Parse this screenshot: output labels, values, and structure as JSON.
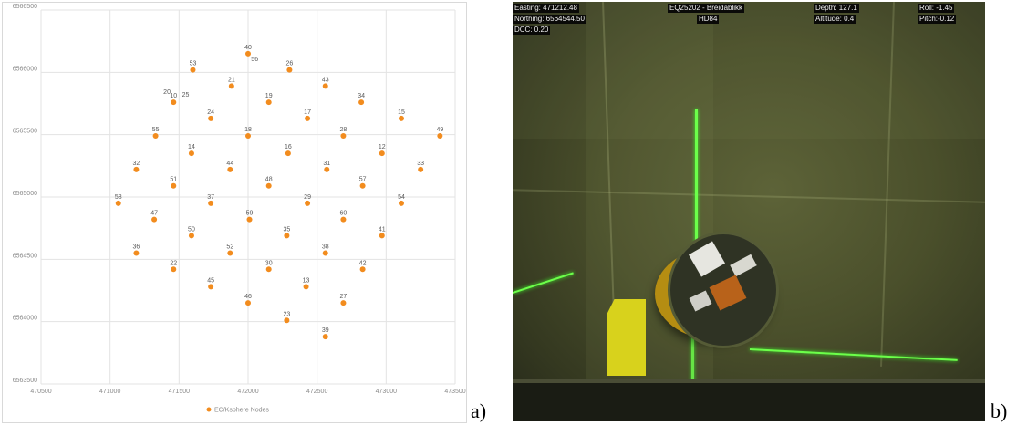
{
  "chart": {
    "panel_label": "a)",
    "legend_label": "EC/Ksphere Nodes"
  },
  "chart_data": {
    "type": "scatter",
    "xlim": [
      470500,
      473500
    ],
    "ylim": [
      6563500,
      6566500
    ],
    "x_ticks": [
      "470500",
      "471000",
      "471500",
      "472000",
      "472500",
      "473000",
      "473500"
    ],
    "y_ticks": [
      "6566500",
      "6566000",
      "6565500",
      "6565000",
      "6564500",
      "6564000",
      "6563500"
    ],
    "grid": true,
    "legend_placement": "bottom",
    "series": [
      {
        "name": "EC/Ksphere Nodes",
        "color": "#f28c1e",
        "points": [
          {
            "label": "40",
            "x": 472000,
            "y": 6566150
          },
          {
            "label": "53",
            "x": 471600,
            "y": 6566020
          },
          {
            "label": "26",
            "x": 472300,
            "y": 6566020
          },
          {
            "label": "21",
            "x": 471880,
            "y": 6565890
          },
          {
            "label": "43",
            "x": 472560,
            "y": 6565890
          },
          {
            "label": "10",
            "x": 471460,
            "y": 6565760
          },
          {
            "label": "19",
            "x": 472150,
            "y": 6565760
          },
          {
            "label": "34",
            "x": 472820,
            "y": 6565760
          },
          {
            "label": "24",
            "x": 471730,
            "y": 6565630
          },
          {
            "label": "17",
            "x": 472430,
            "y": 6565630
          },
          {
            "label": "15",
            "x": 473110,
            "y": 6565630
          },
          {
            "label": "55",
            "x": 471330,
            "y": 6565490
          },
          {
            "label": "18",
            "x": 472000,
            "y": 6565490
          },
          {
            "label": "28",
            "x": 472690,
            "y": 6565490
          },
          {
            "label": "49",
            "x": 473390,
            "y": 6565490
          },
          {
            "label": "14",
            "x": 471590,
            "y": 6565350
          },
          {
            "label": "16",
            "x": 472290,
            "y": 6565350
          },
          {
            "label": "12",
            "x": 472970,
            "y": 6565350
          },
          {
            "label": "32",
            "x": 471190,
            "y": 6565220
          },
          {
            "label": "44",
            "x": 471870,
            "y": 6565220
          },
          {
            "label": "31",
            "x": 472570,
            "y": 6565220
          },
          {
            "label": "33",
            "x": 473250,
            "y": 6565220
          },
          {
            "label": "51",
            "x": 471460,
            "y": 6565090
          },
          {
            "label": "48",
            "x": 472150,
            "y": 6565090
          },
          {
            "label": "57",
            "x": 472830,
            "y": 6565090
          },
          {
            "label": "58",
            "x": 471060,
            "y": 6564950
          },
          {
            "label": "37",
            "x": 471730,
            "y": 6564950
          },
          {
            "label": "29",
            "x": 472430,
            "y": 6564950
          },
          {
            "label": "54",
            "x": 473110,
            "y": 6564950
          },
          {
            "label": "47",
            "x": 471320,
            "y": 6564820
          },
          {
            "label": "59",
            "x": 472010,
            "y": 6564820
          },
          {
            "label": "60",
            "x": 472690,
            "y": 6564820
          },
          {
            "label": "50",
            "x": 471590,
            "y": 6564690
          },
          {
            "label": "35",
            "x": 472280,
            "y": 6564690
          },
          {
            "label": "41",
            "x": 472970,
            "y": 6564690
          },
          {
            "label": "36",
            "x": 471190,
            "y": 6564550
          },
          {
            "label": "52",
            "x": 471870,
            "y": 6564550
          },
          {
            "label": "38",
            "x": 472560,
            "y": 6564550
          },
          {
            "label": "22",
            "x": 471460,
            "y": 6564420
          },
          {
            "label": "30",
            "x": 472150,
            "y": 6564420
          },
          {
            "label": "42",
            "x": 472830,
            "y": 6564420
          },
          {
            "label": "45",
            "x": 471730,
            "y": 6564280
          },
          {
            "label": "13",
            "x": 472420,
            "y": 6564280
          },
          {
            "label": "46",
            "x": 472000,
            "y": 6564150
          },
          {
            "label": "27",
            "x": 472690,
            "y": 6564150
          },
          {
            "label": "23",
            "x": 472280,
            "y": 6564010
          },
          {
            "label": "39",
            "x": 472560,
            "y": 6563880
          }
        ]
      }
    ],
    "extra_labels": [
      {
        "label": "56",
        "x": 472000,
        "y": 6566150
      },
      {
        "label": "20",
        "x": 471460,
        "y": 6565760
      },
      {
        "label": "25",
        "x": 471460,
        "y": 6565760
      }
    ]
  },
  "photo": {
    "panel_label": "b)",
    "easting": "Easting: 471212.48",
    "northing": "Northing: 6564544.50",
    "dcc": "DCC: 0.20",
    "title": "EQ25202 - Breidablikk",
    "datum": "HD84",
    "depth": "Depth: 127.1",
    "altitude": "Altitude: 0.4",
    "roll": "Roll: -1.45",
    "pitch": "Pitch:-0.12"
  }
}
